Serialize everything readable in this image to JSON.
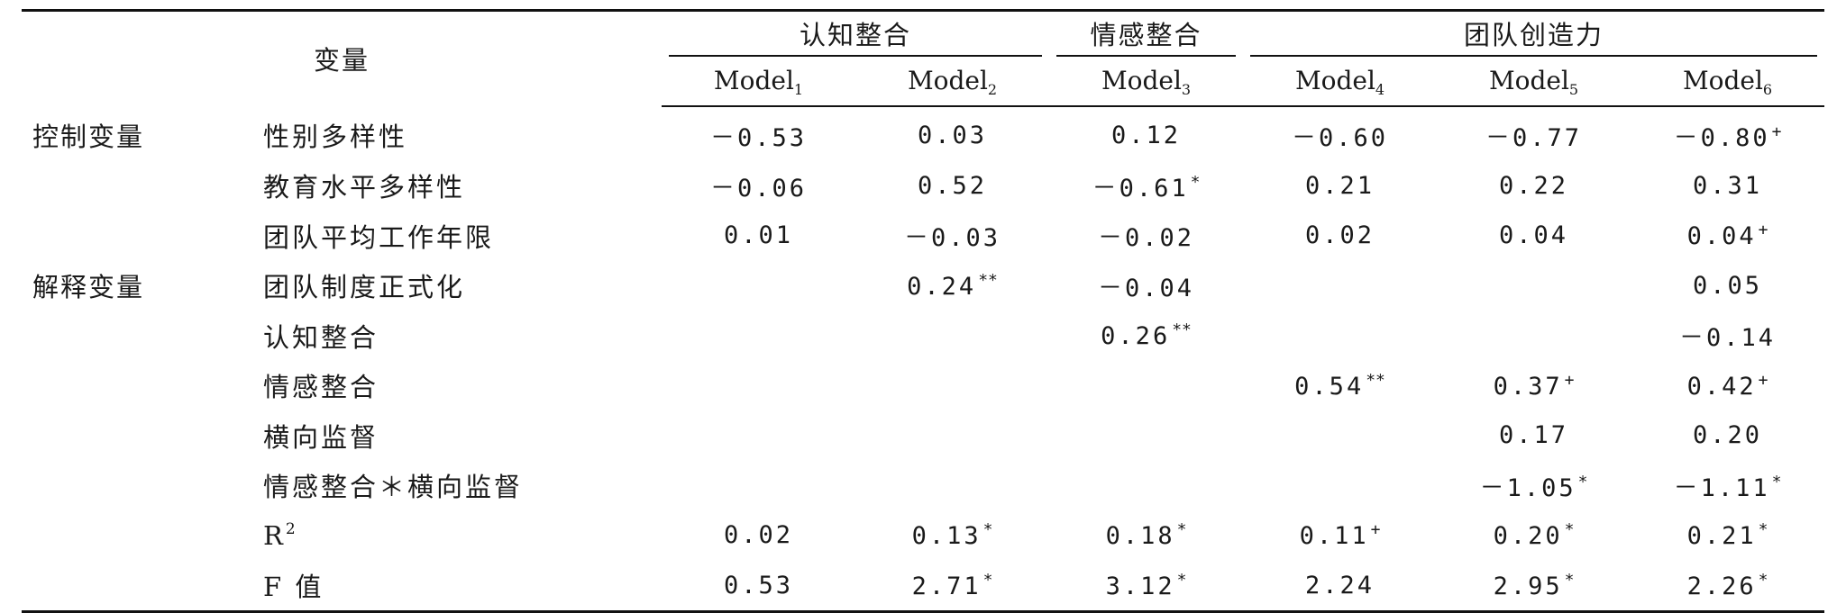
{
  "header": {
    "variable_label": "变量",
    "groups": [
      {
        "label": "认知整合",
        "span": 2
      },
      {
        "label": "情感整合",
        "span": 1
      },
      {
        "label": "团队创造力",
        "span": 3
      }
    ],
    "models": [
      {
        "base": "Model",
        "sub": "1"
      },
      {
        "base": "Model",
        "sub": "2"
      },
      {
        "base": "Model",
        "sub": "3"
      },
      {
        "base": "Model",
        "sub": "4"
      },
      {
        "base": "Model",
        "sub": "5"
      },
      {
        "base": "Model",
        "sub": "6"
      }
    ]
  },
  "rows": [
    {
      "group": "控制变量",
      "variable": "性别多样性",
      "cells": [
        {
          "v": "－0.53",
          "s": ""
        },
        {
          "v": "0.03",
          "s": ""
        },
        {
          "v": "0.12",
          "s": ""
        },
        {
          "v": "－0.60",
          "s": ""
        },
        {
          "v": "－0.77",
          "s": ""
        },
        {
          "v": "－0.80",
          "s": "+"
        }
      ]
    },
    {
      "group": "",
      "variable": "教育水平多样性",
      "cells": [
        {
          "v": "－0.06",
          "s": ""
        },
        {
          "v": "0.52",
          "s": ""
        },
        {
          "v": "－0.61",
          "s": "*"
        },
        {
          "v": "0.21",
          "s": ""
        },
        {
          "v": "0.22",
          "s": ""
        },
        {
          "v": "0.31",
          "s": ""
        }
      ]
    },
    {
      "group": "",
      "variable": "团队平均工作年限",
      "cells": [
        {
          "v": "0.01",
          "s": ""
        },
        {
          "v": "－0.03",
          "s": ""
        },
        {
          "v": "－0.02",
          "s": ""
        },
        {
          "v": "0.02",
          "s": ""
        },
        {
          "v": "0.04",
          "s": ""
        },
        {
          "v": "0.04",
          "s": "+"
        }
      ]
    },
    {
      "group": "解释变量",
      "variable": "团队制度正式化",
      "cells": [
        {
          "v": "",
          "s": ""
        },
        {
          "v": "0.24",
          "s": "**"
        },
        {
          "v": "－0.04",
          "s": ""
        },
        {
          "v": "",
          "s": ""
        },
        {
          "v": "",
          "s": ""
        },
        {
          "v": "0.05",
          "s": ""
        }
      ]
    },
    {
      "group": "",
      "variable": "认知整合",
      "cells": [
        {
          "v": "",
          "s": ""
        },
        {
          "v": "",
          "s": ""
        },
        {
          "v": "0.26",
          "s": "**"
        },
        {
          "v": "",
          "s": ""
        },
        {
          "v": "",
          "s": ""
        },
        {
          "v": "－0.14",
          "s": ""
        }
      ]
    },
    {
      "group": "",
      "variable": "情感整合",
      "cells": [
        {
          "v": "",
          "s": ""
        },
        {
          "v": "",
          "s": ""
        },
        {
          "v": "",
          "s": ""
        },
        {
          "v": "0.54",
          "s": "**"
        },
        {
          "v": "0.37",
          "s": "+"
        },
        {
          "v": "0.42",
          "s": "+"
        }
      ]
    },
    {
      "group": "",
      "variable": "横向监督",
      "cells": [
        {
          "v": "",
          "s": ""
        },
        {
          "v": "",
          "s": ""
        },
        {
          "v": "",
          "s": ""
        },
        {
          "v": "",
          "s": ""
        },
        {
          "v": "0.17",
          "s": ""
        },
        {
          "v": "0.20",
          "s": ""
        }
      ]
    },
    {
      "group": "",
      "variable": "情感整合＊横向监督",
      "cells": [
        {
          "v": "",
          "s": ""
        },
        {
          "v": "",
          "s": ""
        },
        {
          "v": "",
          "s": ""
        },
        {
          "v": "",
          "s": ""
        },
        {
          "v": "－1.05",
          "s": "*"
        },
        {
          "v": "－1.11",
          "s": "*"
        }
      ]
    },
    {
      "group": "",
      "variable": "R",
      "variable_sup": "2",
      "cells": [
        {
          "v": "0.02",
          "s": ""
        },
        {
          "v": "0.13",
          "s": "*"
        },
        {
          "v": "0.18",
          "s": "*"
        },
        {
          "v": "0.11",
          "s": "+"
        },
        {
          "v": "0.20",
          "s": "*"
        },
        {
          "v": "0.21",
          "s": "*"
        }
      ]
    },
    {
      "group": "",
      "variable": "F 值",
      "cells": [
        {
          "v": "0.53",
          "s": ""
        },
        {
          "v": "2.71",
          "s": "*"
        },
        {
          "v": "3.12",
          "s": "*"
        },
        {
          "v": "2.24",
          "s": ""
        },
        {
          "v": "2.95",
          "s": "*"
        },
        {
          "v": "2.26",
          "s": "*"
        }
      ]
    }
  ]
}
